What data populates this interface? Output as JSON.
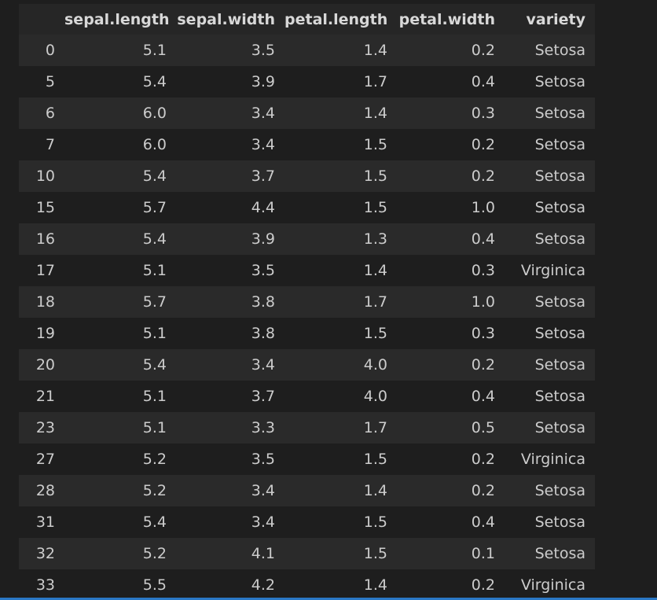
{
  "table": {
    "columns": [
      "",
      "sepal.length",
      "sepal.width",
      "petal.length",
      "petal.width",
      "variety"
    ],
    "rows": [
      [
        "0",
        "5.1",
        "3.5",
        "1.4",
        "0.2",
        "Setosa"
      ],
      [
        "5",
        "5.4",
        "3.9",
        "1.7",
        "0.4",
        "Setosa"
      ],
      [
        "6",
        "6.0",
        "3.4",
        "1.4",
        "0.3",
        "Setosa"
      ],
      [
        "7",
        "6.0",
        "3.4",
        "1.5",
        "0.2",
        "Setosa"
      ],
      [
        "10",
        "5.4",
        "3.7",
        "1.5",
        "0.2",
        "Setosa"
      ],
      [
        "15",
        "5.7",
        "4.4",
        "1.5",
        "1.0",
        "Setosa"
      ],
      [
        "16",
        "5.4",
        "3.9",
        "1.3",
        "0.4",
        "Setosa"
      ],
      [
        "17",
        "5.1",
        "3.5",
        "1.4",
        "0.3",
        "Virginica"
      ],
      [
        "18",
        "5.7",
        "3.8",
        "1.7",
        "1.0",
        "Setosa"
      ],
      [
        "19",
        "5.1",
        "3.8",
        "1.5",
        "0.3",
        "Setosa"
      ],
      [
        "20",
        "5.4",
        "3.4",
        "4.0",
        "0.2",
        "Setosa"
      ],
      [
        "21",
        "5.1",
        "3.7",
        "4.0",
        "0.4",
        "Setosa"
      ],
      [
        "23",
        "5.1",
        "3.3",
        "1.7",
        "0.5",
        "Setosa"
      ],
      [
        "27",
        "5.2",
        "3.5",
        "1.5",
        "0.2",
        "Virginica"
      ],
      [
        "28",
        "5.2",
        "3.4",
        "1.4",
        "0.2",
        "Setosa"
      ],
      [
        "31",
        "5.4",
        "3.4",
        "1.5",
        "0.4",
        "Setosa"
      ],
      [
        "32",
        "5.2",
        "4.1",
        "1.5",
        "0.1",
        "Setosa"
      ],
      [
        "33",
        "5.5",
        "4.2",
        "1.4",
        "0.2",
        "Virginica"
      ]
    ]
  },
  "colors": {
    "background": "#1e1e1e",
    "row_stripe": "#2a2a2a",
    "header_background": "#262626",
    "text": "#cccccc",
    "accent_bar": "#2a78c6"
  }
}
